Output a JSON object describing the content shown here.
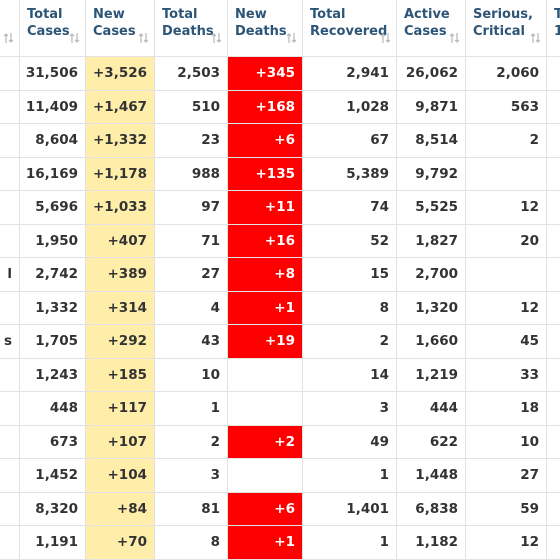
{
  "table": {
    "headers": [
      {
        "key": "country"
      },
      {
        "key": "total_cases",
        "lines": [
          "Total",
          "Cases"
        ]
      },
      {
        "key": "new_cases",
        "lines": [
          "New",
          "Cases"
        ]
      },
      {
        "key": "total_deaths",
        "lines": [
          "Total",
          "Deaths"
        ]
      },
      {
        "key": "new_deaths",
        "lines": [
          "New",
          "Deaths"
        ]
      },
      {
        "key": "total_recovered",
        "lines": [
          "Total",
          "Recovered"
        ]
      },
      {
        "key": "active_cases",
        "lines": [
          "Active",
          "Cases"
        ]
      },
      {
        "key": "serious_critical",
        "lines": [
          "Serious,",
          "Critical"
        ]
      },
      {
        "key": "tot_cases_1m",
        "lines": [
          "T",
          "1"
        ]
      }
    ],
    "rows": [
      {
        "total_cases": "31,506",
        "new_cases": "+3,526",
        "total_deaths": "2,503",
        "new_deaths": "+345",
        "total_recovered": "2,941",
        "active_cases": "26,062",
        "serious_critical": "2,060"
      },
      {
        "total_cases": "11,409",
        "new_cases": "+1,467",
        "total_deaths": "510",
        "new_deaths": "+168",
        "total_recovered": "1,028",
        "active_cases": "9,871",
        "serious_critical": "563"
      },
      {
        "total_cases": "8,604",
        "new_cases": "+1,332",
        "total_deaths": "23",
        "new_deaths": "+6",
        "total_recovered": "67",
        "active_cases": "8,514",
        "serious_critical": "2"
      },
      {
        "total_cases": "16,169",
        "new_cases": "+1,178",
        "total_deaths": "988",
        "new_deaths": "+135",
        "total_recovered": "5,389",
        "active_cases": "9,792"
      },
      {
        "total_cases": "5,696",
        "new_cases": "+1,033",
        "total_deaths": "97",
        "new_deaths": "+11",
        "total_recovered": "74",
        "active_cases": "5,525",
        "serious_critical": "12"
      },
      {
        "total_cases": "1,950",
        "new_cases": "+407",
        "total_deaths": "71",
        "new_deaths": "+16",
        "total_recovered": "52",
        "active_cases": "1,827",
        "serious_critical": "20"
      },
      {
        "country": "l",
        "total_cases": "2,742",
        "new_cases": "+389",
        "total_deaths": "27",
        "new_deaths": "+8",
        "total_recovered": "15",
        "active_cases": "2,700"
      },
      {
        "total_cases": "1,332",
        "new_cases": "+314",
        "total_deaths": "4",
        "new_deaths": "+1",
        "total_recovered": "8",
        "active_cases": "1,320",
        "serious_critical": "12"
      },
      {
        "country": "s",
        "total_cases": "1,705",
        "new_cases": "+292",
        "total_deaths": "43",
        "new_deaths": "+19",
        "total_recovered": "2",
        "active_cases": "1,660",
        "serious_critical": "45"
      },
      {
        "total_cases": "1,243",
        "new_cases": "+185",
        "total_deaths": "10",
        "total_recovered": "14",
        "active_cases": "1,219",
        "serious_critical": "33"
      },
      {
        "total_cases": "448",
        "new_cases": "+117",
        "total_deaths": "1",
        "total_recovered": "3",
        "active_cases": "444",
        "serious_critical": "18"
      },
      {
        "total_cases": "673",
        "new_cases": "+107",
        "total_deaths": "2",
        "new_deaths": "+2",
        "total_recovered": "49",
        "active_cases": "622",
        "serious_critical": "10"
      },
      {
        "total_cases": "1,452",
        "new_cases": "+104",
        "total_deaths": "3",
        "total_recovered": "1",
        "active_cases": "1,448",
        "serious_critical": "27"
      },
      {
        "total_cases": "8,320",
        "new_cases": "+84",
        "total_deaths": "81",
        "new_deaths": "+6",
        "total_recovered": "1,401",
        "active_cases": "6,838",
        "serious_critical": "59"
      },
      {
        "total_cases": "1,191",
        "new_cases": "+70",
        "total_deaths": "8",
        "new_deaths": "+1",
        "total_recovered": "1",
        "active_cases": "1,182",
        "serious_critical": "12"
      }
    ]
  }
}
